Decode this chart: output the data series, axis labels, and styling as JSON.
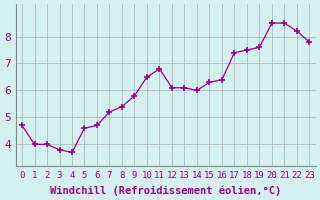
{
  "x": [
    0,
    1,
    2,
    3,
    4,
    5,
    6,
    7,
    8,
    9,
    10,
    11,
    12,
    13,
    14,
    15,
    16,
    17,
    18,
    19,
    20,
    21,
    22,
    23
  ],
  "y": [
    4.7,
    4.0,
    4.0,
    3.8,
    3.7,
    4.6,
    4.7,
    5.2,
    5.4,
    5.8,
    6.5,
    6.8,
    6.1,
    6.1,
    6.0,
    6.3,
    6.4,
    7.4,
    7.5,
    7.6,
    8.5,
    8.5,
    8.2,
    7.8
  ],
  "line_color": "#990099",
  "marker_color": "#990099",
  "bg_color": "#d4f0f0",
  "grid_color": "#b0b0b0",
  "xlabel": "Windchill (Refroidissement éolien,°C)",
  "ylim": [
    3.2,
    9.2
  ],
  "xlim": [
    -0.5,
    23.5
  ],
  "yticks": [
    4,
    5,
    6,
    7,
    8
  ],
  "xticks": [
    0,
    1,
    2,
    3,
    4,
    5,
    6,
    7,
    8,
    9,
    10,
    11,
    12,
    13,
    14,
    15,
    16,
    17,
    18,
    19,
    20,
    21,
    22,
    23
  ],
  "xlabel_fontsize": 7.5,
  "ytick_fontsize": 8,
  "xtick_fontsize": 6.5,
  "label_color": "#990099",
  "tick_color": "#990099"
}
